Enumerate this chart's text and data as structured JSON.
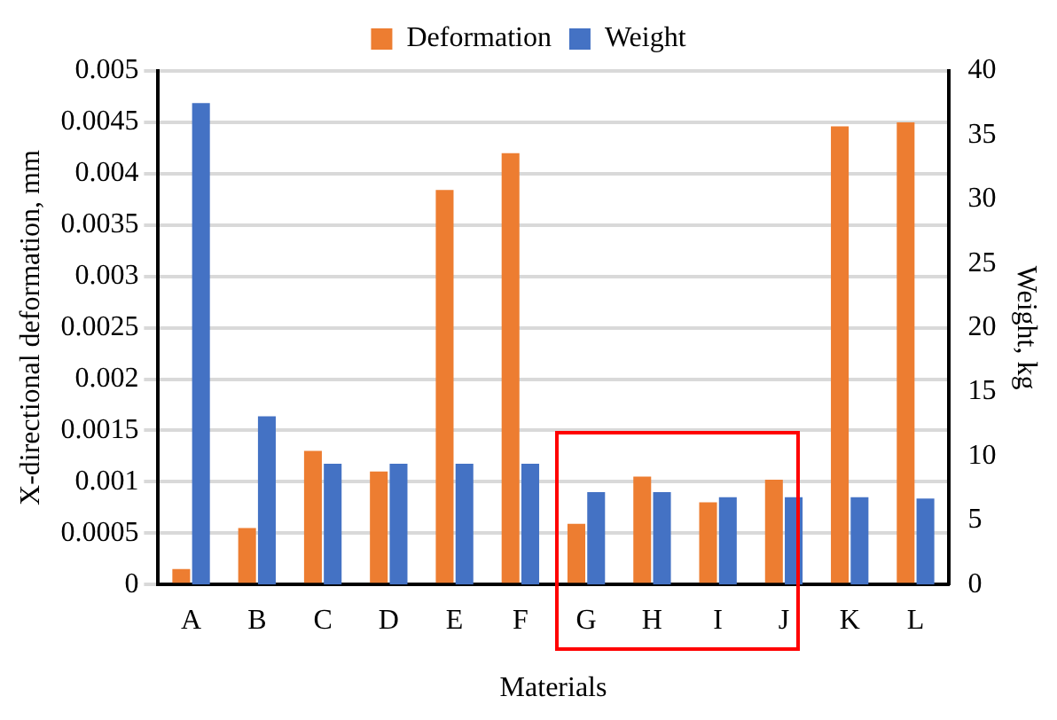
{
  "chart_data": {
    "type": "bar",
    "xlabel": "Materials",
    "ylabel": "X-directional deformation, mm",
    "y2label": "Weight, kg",
    "categories": [
      "A",
      "B",
      "C",
      "D",
      "E",
      "F",
      "G",
      "H",
      "I",
      "J",
      "K",
      "L"
    ],
    "series": [
      {
        "name": "Deformation",
        "color": "#ed7d31",
        "values": [
          0.00015,
          0.00055,
          0.0013,
          0.0011,
          0.00384,
          0.0042,
          0.00059,
          0.00105,
          0.0008,
          0.00102,
          0.00446,
          0.0045
        ]
      },
      {
        "name": "Weight",
        "color": "#4472c4",
        "axis": "y2",
        "values": [
          37.5,
          13.1,
          9.4,
          9.4,
          9.4,
          9.4,
          7.2,
          7.2,
          6.8,
          6.8,
          6.8,
          6.7
        ]
      }
    ],
    "ylim": [
      0,
      0.005
    ],
    "yticks": [
      0,
      0.0005,
      0.001,
      0.0015,
      0.002,
      0.0025,
      0.003,
      0.0035,
      0.004,
      0.0045,
      0.005
    ],
    "y2lim": [
      0,
      40
    ],
    "y2ticks": [
      0,
      5,
      10,
      15,
      20,
      25,
      30,
      35,
      40
    ],
    "grid": "y",
    "legend": "top"
  }
}
